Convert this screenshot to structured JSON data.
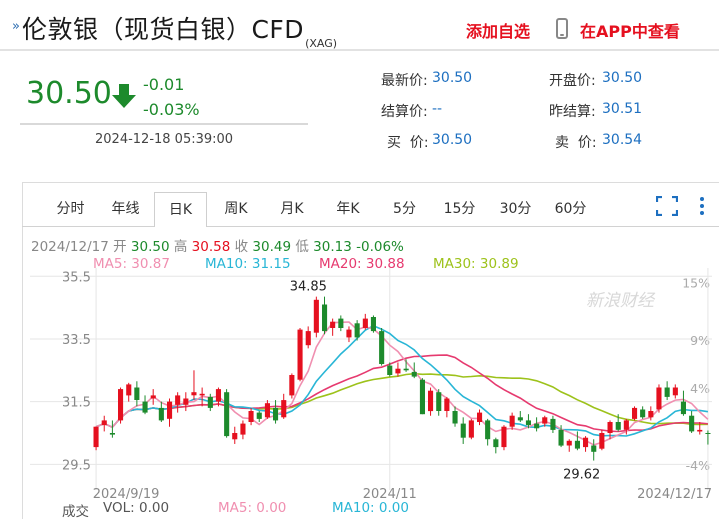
{
  "header": {
    "title": "伦敦银（现货白银）CFD",
    "title_sub": "(XAG)",
    "add_watch": "添加自选",
    "open_app": "在APP中查看"
  },
  "quote": {
    "price": "30.50",
    "change": "-0.01",
    "change_pct": "-0.03%",
    "datetime": "2024-12-18 05:39:00",
    "latest_label": "最新价:",
    "latest": "30.50",
    "open_label": "开盘价:",
    "open": "30.50",
    "settle_label": "结算价:",
    "settle": "--",
    "prev_settle_label": "昨结算:",
    "prev_settle": "30.51",
    "bid_label": "买  价:",
    "bid": "30.50",
    "ask_label": "卖  价:",
    "ask": "30.54"
  },
  "tabs": [
    "分时",
    "年线",
    "日K",
    "周K",
    "月K",
    "年K",
    "5分",
    "15分",
    "30分",
    "60分"
  ],
  "active_tab": "日K",
  "info": {
    "date": "2024/12/17",
    "open_label": "开",
    "open": "30.50",
    "high_label": "高",
    "high": "30.58",
    "close_label": "收",
    "close": "30.49",
    "low_label": "低",
    "low": "30.13",
    "pct": "-0.06%"
  },
  "ma": {
    "ma5": "MA5: 30.87",
    "ma10": "MA10: 31.15",
    "ma20": "MA20: 30.88",
    "ma30": "MA30: 30.89"
  },
  "colors": {
    "up": "#e5101f",
    "down": "#1d8a2c",
    "ma5": "#f08fb0",
    "ma10": "#29b6d6",
    "ma20": "#e63a6f",
    "ma30": "#9dc21b"
  },
  "watermark": "新浪财经",
  "chart_data": {
    "type": "candlestick",
    "y_ticks": [
      "35.5",
      "33.5",
      "31.5",
      "29.5"
    ],
    "y_right_ticks": [
      "15%",
      "9%",
      "4%",
      "-4%"
    ],
    "x_labels": [
      "2024/9/19",
      "2024/11",
      "2024/12/17"
    ],
    "ylim": [
      29.0,
      35.7
    ],
    "max_label": "34.85",
    "min_label": "29.62",
    "candles": [
      [
        30.05,
        30.7,
        29.95,
        30.7
      ],
      [
        30.75,
        31.05,
        30.55,
        30.9
      ],
      [
        30.5,
        30.9,
        30.35,
        30.45
      ],
      [
        30.9,
        31.95,
        30.8,
        31.9
      ],
      [
        31.7,
        32.1,
        31.5,
        32.05
      ],
      [
        31.95,
        32.15,
        31.35,
        31.55
      ],
      [
        31.5,
        31.7,
        31.1,
        31.15
      ],
      [
        31.6,
        31.9,
        31.4,
        31.7
      ],
      [
        31.3,
        31.5,
        30.85,
        30.9
      ],
      [
        30.95,
        31.6,
        30.7,
        31.5
      ],
      [
        31.4,
        31.8,
        31.15,
        31.7
      ],
      [
        31.4,
        31.8,
        31.2,
        31.6
      ],
      [
        31.7,
        32.5,
        31.55,
        31.8
      ],
      [
        31.7,
        31.95,
        31.35,
        31.75
      ],
      [
        31.65,
        31.75,
        31.2,
        31.3
      ],
      [
        31.5,
        31.95,
        31.35,
        31.9
      ],
      [
        31.8,
        31.9,
        30.35,
        30.4
      ],
      [
        30.3,
        30.7,
        30.15,
        30.5
      ],
      [
        30.45,
        30.9,
        30.3,
        30.8
      ],
      [
        30.85,
        31.3,
        30.75,
        31.2
      ],
      [
        31.15,
        31.2,
        30.85,
        30.95
      ],
      [
        31.0,
        31.55,
        30.95,
        31.45
      ],
      [
        31.3,
        31.55,
        30.8,
        30.9
      ],
      [
        31.0,
        31.75,
        30.95,
        31.55
      ],
      [
        31.7,
        32.4,
        31.6,
        32.35
      ],
      [
        32.2,
        33.85,
        32.15,
        33.8
      ],
      [
        33.3,
        33.9,
        33.2,
        33.75
      ],
      [
        33.7,
        34.85,
        33.55,
        34.75
      ],
      [
        34.6,
        34.85,
        33.65,
        33.75
      ],
      [
        33.85,
        34.15,
        33.6,
        34.05
      ],
      [
        34.15,
        34.25,
        33.75,
        33.85
      ],
      [
        33.55,
        33.9,
        33.4,
        33.8
      ],
      [
        34.0,
        34.1,
        33.45,
        33.55
      ],
      [
        33.85,
        34.3,
        33.8,
        34.15
      ],
      [
        34.2,
        34.25,
        33.7,
        33.75
      ],
      [
        33.75,
        33.85,
        32.65,
        32.7
      ],
      [
        32.65,
        32.75,
        32.3,
        32.35
      ],
      [
        32.4,
        32.75,
        32.3,
        32.55
      ],
      [
        32.55,
        32.85,
        32.45,
        32.5
      ],
      [
        32.45,
        32.75,
        32.25,
        32.3
      ],
      [
        32.2,
        32.25,
        31.1,
        31.1
      ],
      [
        31.2,
        31.95,
        31.05,
        31.85
      ],
      [
        31.8,
        31.9,
        31.05,
        31.2
      ],
      [
        31.2,
        31.65,
        31.0,
        31.6
      ],
      [
        31.2,
        31.35,
        30.7,
        30.8
      ],
      [
        30.8,
        31.0,
        30.15,
        30.35
      ],
      [
        30.35,
        30.95,
        30.3,
        30.9
      ],
      [
        30.85,
        31.25,
        30.75,
        31.15
      ],
      [
        30.9,
        30.95,
        30.1,
        30.3
      ],
      [
        30.3,
        30.35,
        29.85,
        30.05
      ],
      [
        30.05,
        30.75,
        29.95,
        30.7
      ],
      [
        30.7,
        31.15,
        30.6,
        31.05
      ],
      [
        31.0,
        31.2,
        30.85,
        30.9
      ],
      [
        30.9,
        31.1,
        30.65,
        30.75
      ],
      [
        30.8,
        31.0,
        30.55,
        30.65
      ],
      [
        30.8,
        31.05,
        30.7,
        31.0
      ],
      [
        30.95,
        31.05,
        30.5,
        30.6
      ],
      [
        30.6,
        30.75,
        30.05,
        30.1
      ],
      [
        30.1,
        30.3,
        29.9,
        30.25
      ],
      [
        30.25,
        30.55,
        29.95,
        30.0
      ],
      [
        30.05,
        30.4,
        29.9,
        30.35
      ],
      [
        30.1,
        30.3,
        29.62,
        29.9
      ],
      [
        30.0,
        30.6,
        29.95,
        30.5
      ],
      [
        30.5,
        30.9,
        30.3,
        30.85
      ],
      [
        30.85,
        31.1,
        30.55,
        30.6
      ],
      [
        30.6,
        30.95,
        30.45,
        30.9
      ],
      [
        30.95,
        31.35,
        30.9,
        31.3
      ],
      [
        31.25,
        31.35,
        30.95,
        31.0
      ],
      [
        31.0,
        31.35,
        30.9,
        31.2
      ],
      [
        31.25,
        32.05,
        31.15,
        31.95
      ],
      [
        31.95,
        32.15,
        31.55,
        31.65
      ],
      [
        31.7,
        32.05,
        31.6,
        31.95
      ],
      [
        31.5,
        31.85,
        31.05,
        31.1
      ],
      [
        31.05,
        31.2,
        30.5,
        30.55
      ],
      [
        30.55,
        30.85,
        30.45,
        30.6
      ],
      [
        30.5,
        30.58,
        30.13,
        30.49
      ]
    ]
  },
  "volume": {
    "label": "成交",
    "vol": "VOL: 0.00",
    "ma5": "MA5: 0.00",
    "ma10": "MA10: 0.00"
  }
}
